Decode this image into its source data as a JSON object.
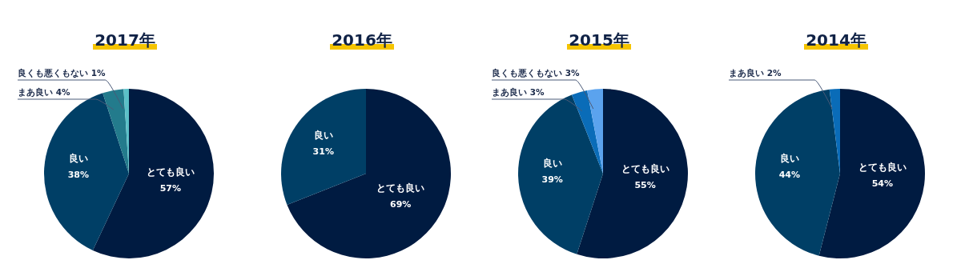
{
  "chart_data": [
    {
      "type": "pie",
      "title": "2017年",
      "categories": [
        "とても良い",
        "良い",
        "まあ良い",
        "良くも悪くもない"
      ],
      "values": [
        57,
        38,
        4,
        1
      ],
      "value_labels": [
        "57%",
        "38%",
        "4%",
        "1%"
      ],
      "colors": [
        "#001b41",
        "#003f66",
        "#237b8c",
        "#5bc0c8"
      ]
    },
    {
      "type": "pie",
      "title": "2016年",
      "categories": [
        "とても良い",
        "良い"
      ],
      "values": [
        69,
        31
      ],
      "value_labels": [
        "69%",
        "31%"
      ],
      "colors": [
        "#001b41",
        "#003f66"
      ]
    },
    {
      "type": "pie",
      "title": "2015年",
      "categories": [
        "とても良い",
        "良い",
        "まあ良い",
        "良くも悪くもない"
      ],
      "values": [
        55,
        39,
        3,
        3
      ],
      "value_labels": [
        "55%",
        "39%",
        "3%",
        "3%"
      ],
      "colors": [
        "#001b41",
        "#003f66",
        "#0a6cb8",
        "#5ba3ee"
      ]
    },
    {
      "type": "pie",
      "title": "2014年",
      "categories": [
        "とても良い",
        "良い",
        "まあ良い"
      ],
      "values": [
        54,
        44,
        2
      ],
      "value_labels": [
        "54%",
        "44%",
        "2%"
      ],
      "colors": [
        "#001b41",
        "#003f66",
        "#0a6cb8"
      ]
    }
  ]
}
